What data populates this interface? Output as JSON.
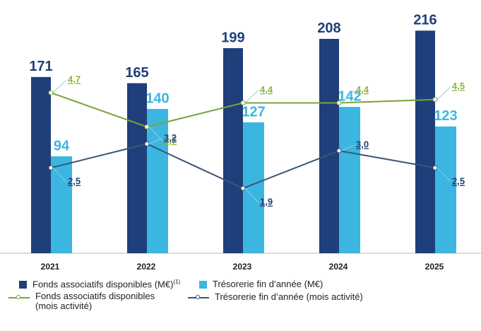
{
  "chart_data": {
    "type": "bar_line",
    "categories": [
      "2021",
      "2022",
      "2023",
      "2024",
      "2025"
    ],
    "ylim": [
      0,
      232
    ],
    "y2lim": [
      0,
      7
    ],
    "series": [
      {
        "name": "Fonds associatifs disponibles (M€)",
        "footnote_marker": "(1)",
        "kind": "bar",
        "color": "#1f3f7a",
        "values": [
          171,
          165,
          199,
          208,
          216
        ]
      },
      {
        "name": "Trésorerie fin d’année (M€)",
        "kind": "bar",
        "color": "#3bb6e0",
        "values": [
          94,
          140,
          127,
          142,
          123
        ]
      },
      {
        "name": "Fonds associatifs disponibles (mois activité)",
        "kind": "line",
        "axis": "y2",
        "color": "#7aa33a",
        "label_color": "#8db43a",
        "values": [
          4.7,
          3.7,
          4.4,
          4.4,
          4.5
        ],
        "value_labels": [
          "4,7",
          "3,7",
          "4,4",
          "4,4",
          "4,5"
        ]
      },
      {
        "name": "Trésorerie fin d’année (mois activité)",
        "kind": "line",
        "axis": "y2",
        "color": "#3c5475",
        "label_color": "#1f3f7a",
        "values": [
          2.5,
          3.2,
          1.9,
          3.0,
          2.5
        ],
        "value_labels": [
          "2,5",
          "3,2",
          "1,9",
          "3,0",
          "2,5"
        ]
      }
    ]
  }
}
